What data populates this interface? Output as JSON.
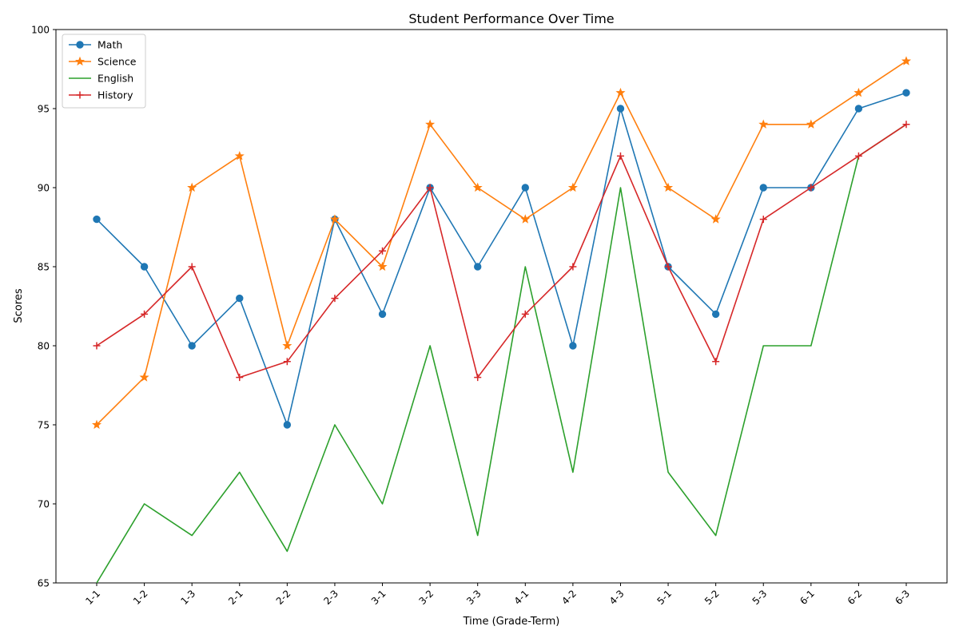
{
  "chart_data": {
    "type": "line",
    "title": "Student Performance Over Time",
    "xlabel": "Time (Grade-Term)",
    "ylabel": "Scores",
    "ylim": [
      65,
      100
    ],
    "yticks": [
      65,
      70,
      75,
      80,
      85,
      90,
      95,
      100
    ],
    "grid": false,
    "legend_position": "top-left",
    "categories": [
      "1-1",
      "1-2",
      "1-3",
      "2-1",
      "2-2",
      "2-3",
      "3-1",
      "3-2",
      "3-3",
      "4-1",
      "4-2",
      "4-3",
      "5-1",
      "5-2",
      "5-3",
      "6-1",
      "6-2",
      "6-3"
    ],
    "series": [
      {
        "name": "Math",
        "color": "#1f77b4",
        "marker": "circle",
        "values": [
          88,
          85,
          80,
          83,
          75,
          88,
          82,
          90,
          85,
          90,
          80,
          95,
          85,
          82,
          90,
          90,
          95,
          96
        ]
      },
      {
        "name": "Science",
        "color": "#ff7f0e",
        "marker": "star",
        "values": [
          75,
          78,
          90,
          92,
          80,
          88,
          85,
          94,
          90,
          88,
          90,
          96,
          90,
          88,
          94,
          94,
          96,
          98
        ]
      },
      {
        "name": "English",
        "color": "#2ca02c",
        "marker": "none",
        "values": [
          65,
          70,
          68,
          72,
          67,
          75,
          70,
          80,
          68,
          85,
          72,
          90,
          72,
          68,
          80,
          80,
          92,
          94
        ]
      },
      {
        "name": "History",
        "color": "#d62728",
        "marker": "plus",
        "values": [
          80,
          82,
          85,
          78,
          79,
          83,
          86,
          90,
          78,
          82,
          85,
          92,
          85,
          79,
          88,
          90,
          92,
          94
        ]
      }
    ]
  }
}
